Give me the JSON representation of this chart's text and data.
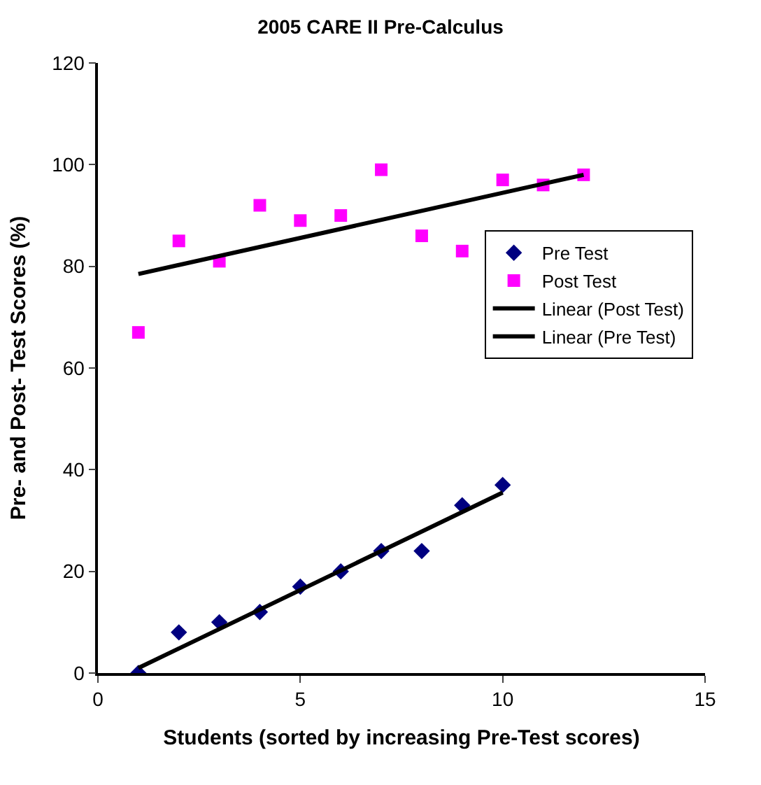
{
  "chart_data": {
    "type": "scatter",
    "title": "2005 CARE II Pre-Calculus",
    "xlabel": "Students (sorted by increasing Pre-Test scores)",
    "ylabel": "Pre- and Post- Test Scores (%)",
    "xlim": [
      0,
      15
    ],
    "xticks": [
      0,
      5,
      10,
      15
    ],
    "ylim": [
      0,
      120
    ],
    "yticks": [
      0,
      20,
      40,
      60,
      80,
      100,
      120
    ],
    "grid": false,
    "legend": "right",
    "series": [
      {
        "name": "Pre Test",
        "marker": "diamond",
        "color": "#000080",
        "x": [
          1,
          2,
          3,
          4,
          5,
          6,
          7,
          8,
          9,
          10
        ],
        "values": [
          0,
          8,
          10,
          12,
          17,
          20,
          24,
          24,
          33,
          37
        ]
      },
      {
        "name": "Post Test",
        "marker": "square",
        "color": "#ff00ff",
        "x": [
          1,
          2,
          3,
          4,
          5,
          6,
          7,
          8,
          9,
          10,
          11,
          12
        ],
        "values": [
          67,
          85,
          81,
          92,
          89,
          90,
          99,
          86,
          83,
          97,
          96,
          98
        ]
      },
      {
        "name": "Linear (Post Test)",
        "type": "line",
        "marker": "none",
        "line_style": "solid",
        "color": "#000000",
        "x": [
          1,
          12
        ],
        "values": [
          78.5,
          98
        ]
      },
      {
        "name": "Linear (Pre Test)",
        "type": "line",
        "marker": "none",
        "line_style": "solid",
        "color": "#000000",
        "x": [
          1,
          10
        ],
        "values": [
          1,
          35.5
        ]
      }
    ]
  }
}
